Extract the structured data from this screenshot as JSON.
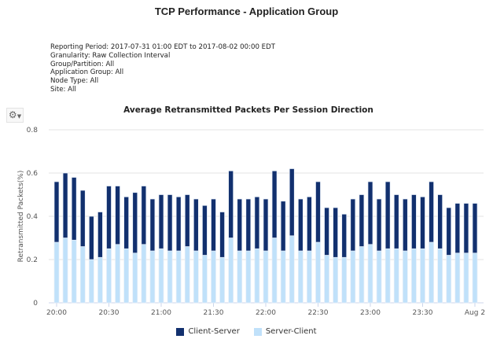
{
  "header": {
    "title": "TCP Performance - Application Group"
  },
  "report_info": [
    "Reporting Period: 2017-07-31 01:00 EDT to 2017-08-02 00:00 EDT",
    "Granularity: Raw Collection Interval",
    "Group/Partition: All",
    "Application Group: All",
    "Node Type: All",
    "Site: All"
  ],
  "toolbar": {
    "settings_icon": "gear-icon",
    "dropdown_icon": "caret-down-icon"
  },
  "chart_data": {
    "type": "bar",
    "stacked": true,
    "title": "Average Retransmitted Packets Per Session Direction",
    "xlabel": "",
    "ylabel": "Retransmitted Packets(%)",
    "ylim": [
      0,
      0.8
    ],
    "yticks": [
      "0",
      "0.2",
      "0.4",
      "0.6",
      "0.8"
    ],
    "xticks": [
      {
        "index": 0,
        "label": "20:00"
      },
      {
        "index": 6,
        "label": "20:30"
      },
      {
        "index": 12,
        "label": "21:00"
      },
      {
        "index": 18,
        "label": "21:30"
      },
      {
        "index": 24,
        "label": "22:00"
      },
      {
        "index": 30,
        "label": "22:30"
      },
      {
        "index": 36,
        "label": "23:00"
      },
      {
        "index": 42,
        "label": "23:30"
      },
      {
        "index": 48,
        "label": "Aug 2"
      }
    ],
    "x_interval": "5 min",
    "grid": true,
    "legend": "bottom",
    "series": [
      {
        "name": "Client-Server",
        "color": "#12306e",
        "values": [
          0.28,
          0.3,
          0.29,
          0.26,
          0.2,
          0.21,
          0.29,
          0.27,
          0.24,
          0.28,
          0.27,
          0.24,
          0.25,
          0.26,
          0.25,
          0.24,
          0.24,
          0.23,
          0.24,
          0.21,
          0.31,
          0.24,
          0.24,
          0.24,
          0.24,
          0.31,
          0.23,
          0.31,
          0.24,
          0.25,
          0.28,
          0.22,
          0.23,
          0.2,
          0.24,
          0.24,
          0.29,
          0.24,
          0.31,
          0.25,
          0.24,
          0.25,
          0.24,
          0.28,
          0.25,
          0.22,
          0.23,
          0.23,
          0.23
        ]
      },
      {
        "name": "Server-Client",
        "color": "#c0e1fa",
        "values": [
          0.28,
          0.3,
          0.29,
          0.26,
          0.2,
          0.21,
          0.25,
          0.27,
          0.25,
          0.23,
          0.27,
          0.24,
          0.25,
          0.24,
          0.24,
          0.26,
          0.24,
          0.22,
          0.24,
          0.21,
          0.3,
          0.24,
          0.24,
          0.25,
          0.24,
          0.3,
          0.24,
          0.31,
          0.24,
          0.24,
          0.28,
          0.22,
          0.21,
          0.21,
          0.24,
          0.26,
          0.27,
          0.24,
          0.25,
          0.25,
          0.24,
          0.25,
          0.25,
          0.28,
          0.25,
          0.22,
          0.23,
          0.23,
          0.23
        ]
      }
    ]
  }
}
